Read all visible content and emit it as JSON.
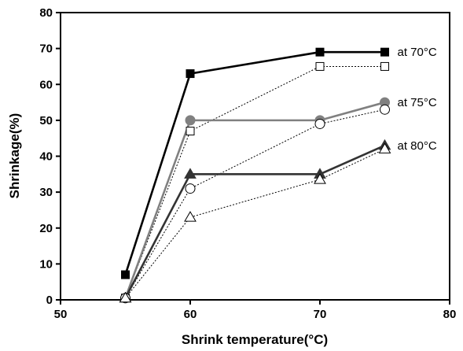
{
  "chart_data": {
    "type": "line",
    "xlabel": "Shrink temperature(°C)",
    "ylabel": "Shrinkage(%)",
    "xlim": [
      50,
      80
    ],
    "ylim": [
      0,
      80
    ],
    "xticks": [
      50,
      60,
      70,
      80
    ],
    "yticks": [
      0,
      10,
      20,
      30,
      40,
      50,
      60,
      70,
      80
    ],
    "grid": false,
    "series": [
      {
        "name": "at 70°C",
        "marker": "square-filled",
        "line": "solid",
        "color": "#000000",
        "x": [
          55,
          60,
          70,
          75
        ],
        "y": [
          7,
          63,
          69,
          69
        ]
      },
      {
        "name": "",
        "marker": "square-open",
        "line": "dotted",
        "color": "#000000",
        "x": [
          55,
          60,
          70,
          75
        ],
        "y": [
          0.5,
          47,
          65,
          65
        ]
      },
      {
        "name": "at 75°C",
        "marker": "circle-filled",
        "line": "solid",
        "color": "#808080",
        "x": [
          55,
          60,
          70,
          75
        ],
        "y": [
          0.5,
          50,
          50,
          55
        ]
      },
      {
        "name": "",
        "marker": "circle-open",
        "line": "dotted",
        "color": "#000000",
        "x": [
          55,
          60,
          70,
          75
        ],
        "y": [
          0.5,
          31,
          49,
          53
        ]
      },
      {
        "name": "at 80°C",
        "marker": "triangle-filled",
        "line": "solid",
        "color": "#333333",
        "x": [
          55,
          60,
          70,
          75
        ],
        "y": [
          0.5,
          35,
          35,
          43
        ]
      },
      {
        "name": "",
        "marker": "triangle-open",
        "line": "dotted",
        "color": "#000000",
        "x": [
          55,
          60,
          70,
          75
        ],
        "y": [
          0.5,
          23,
          33.5,
          42
        ]
      }
    ]
  }
}
